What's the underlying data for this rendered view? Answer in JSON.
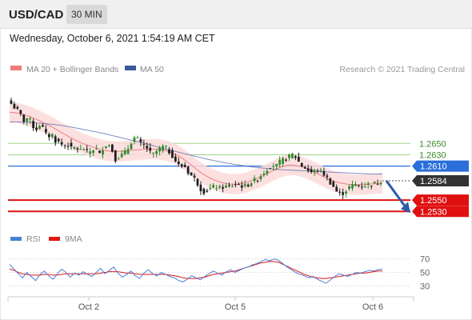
{
  "header": {
    "symbol": "USD/CAD",
    "timeframe": "30 MIN",
    "datetime": "Wednesday, October 6, 2021 1:54:19 AM CET"
  },
  "legend": {
    "ma20_label": "MA 20 + Bollinger Bands",
    "ma50_label": "MA 50",
    "credit": "Research © 2021 Trading Central",
    "rsi_label": "RSI",
    "rsi_ma_label": "9MA"
  },
  "colors": {
    "bull": "#2e8b2e",
    "bear": "#1e1e1e",
    "ma20": "#f07c7c",
    "band_fill": "#fcdada",
    "ma50": "#4a5fa8",
    "support": "#e01010",
    "resistance_green": "#9fd48a",
    "pivot": "#2a6fdb",
    "current": "#333333",
    "rsi": "#4a7fd8",
    "rsi_ma": "#e01818"
  },
  "chart_data": [
    {
      "type": "candlestick",
      "title": "USD/CAD 30 MIN",
      "ylim": [
        1.2505,
        1.2745
      ],
      "x_ticks": [
        "Oct 2",
        "Oct 5",
        "Oct 6"
      ],
      "levels": [
        {
          "value": 1.265,
          "label": "1.2650",
          "role": "resistance",
          "color": "#9fd48a"
        },
        {
          "value": 1.263,
          "label": "1.2630",
          "role": "resistance",
          "color": "#9fd48a"
        },
        {
          "value": 1.261,
          "label": "1.2610",
          "role": "pivot",
          "color": "#2a6fdb"
        },
        {
          "value": 1.2584,
          "label": "1.2584",
          "role": "last",
          "color": "#333333"
        },
        {
          "value": 1.255,
          "label": "1.2550",
          "role": "support",
          "color": "#e01010"
        },
        {
          "value": 1.253,
          "label": "1.2530",
          "role": "support",
          "color": "#e01010"
        }
      ],
      "close_path": [
        1.272,
        1.2712,
        1.2705,
        1.269,
        1.2695,
        1.2688,
        1.2672,
        1.2684,
        1.2676,
        1.266,
        1.2668,
        1.2655,
        1.2652,
        1.2645,
        1.265,
        1.264,
        1.2644,
        1.2637,
        1.2641,
        1.2633,
        1.2638,
        1.2642,
        1.263,
        1.2645,
        1.265,
        1.264,
        1.2622,
        1.2628,
        1.2631,
        1.264,
        1.2655,
        1.2662,
        1.265,
        1.2646,
        1.2641,
        1.2628,
        1.2635,
        1.264,
        1.2645,
        1.2638,
        1.263,
        1.2618,
        1.2608,
        1.2612,
        1.26,
        1.2592,
        1.2585,
        1.2571,
        1.2565,
        1.2568,
        1.2572,
        1.2574,
        1.257,
        1.2575,
        1.2572,
        1.2576,
        1.2578,
        1.2576,
        1.2574,
        1.2578,
        1.2583,
        1.2586,
        1.2593,
        1.26,
        1.2608,
        1.2612,
        1.261,
        1.2618,
        1.2622,
        1.2626,
        1.263,
        1.2625,
        1.2612,
        1.2608,
        1.2602,
        1.2598,
        1.2605,
        1.26,
        1.2595,
        1.2585,
        1.2576,
        1.2565,
        1.256,
        1.2565,
        1.2572,
        1.2576,
        1.2578,
        1.2575,
        1.2576,
        1.2578,
        1.2579,
        1.258,
        1.2584
      ],
      "forecast": {
        "from": 1.2584,
        "to": 1.253,
        "direction": "down"
      },
      "ma20_path": [
        1.2705,
        1.2704,
        1.2701,
        1.2697,
        1.2692,
        1.2686,
        1.268,
        1.2673,
        1.2666,
        1.2659,
        1.2653,
        1.2648,
        1.2644,
        1.264,
        1.2637,
        1.2636,
        1.2636,
        1.2637,
        1.2638,
        1.2639,
        1.264,
        1.264,
        1.2639,
        1.2636,
        1.2631,
        1.2624,
        1.2615,
        1.2605,
        1.2596,
        1.2589,
        1.2584,
        1.258,
        1.2578,
        1.2578,
        1.258,
        1.2584,
        1.2589,
        1.2595,
        1.2601,
        1.2607,
        1.2611,
        1.2612,
        1.261,
        1.2606,
        1.26,
        1.2594,
        1.2588,
        1.2583,
        1.258,
        1.2578,
        1.2577,
        1.2577,
        1.2578,
        1.2579,
        1.258
      ],
      "ma50_path": [
        1.2688,
        1.2688,
        1.2687,
        1.2685,
        1.2683,
        1.268,
        1.2676,
        1.2672,
        1.2668,
        1.2663,
        1.2658,
        1.2653,
        1.2648,
        1.2642,
        1.2637,
        1.2632,
        1.2627,
        1.2622,
        1.2618,
        1.2614,
        1.2611,
        1.2608,
        1.2606,
        1.2604,
        1.2603,
        1.2602,
        1.2601,
        1.26,
        1.2599,
        1.2598,
        1.2597,
        1.2596,
        1.2596
      ],
      "band_width": 0.0018
    },
    {
      "type": "line",
      "title": "RSI",
      "ylim": [
        20,
        80
      ],
      "y_ticks": [
        70,
        50,
        30
      ],
      "series": [
        {
          "name": "RSI",
          "color": "#4a7fd8",
          "values": [
            62,
            55,
            48,
            42,
            50,
            44,
            38,
            47,
            52,
            45,
            40,
            48,
            55,
            50,
            43,
            49,
            46,
            51,
            47,
            44,
            50,
            56,
            48,
            53,
            58,
            49,
            43,
            47,
            52,
            45,
            41,
            49,
            54,
            48,
            45,
            50,
            47,
            44,
            42,
            38,
            36,
            40,
            45,
            42,
            39,
            44,
            48,
            52,
            49,
            46,
            51,
            54,
            50,
            53,
            56,
            58,
            61,
            63,
            66,
            69,
            67,
            70,
            68,
            63,
            58,
            54,
            50,
            47,
            45,
            42,
            44,
            40,
            37,
            34,
            39,
            44,
            48,
            46,
            44,
            47,
            50,
            49,
            51,
            53,
            52,
            54,
            55
          ]
        },
        {
          "name": "9MA",
          "color": "#e01818",
          "values": [
            55,
            53,
            50,
            48,
            47,
            46,
            46,
            46,
            47,
            47,
            46,
            46,
            47,
            48,
            48,
            48,
            48,
            48,
            48,
            48,
            48,
            49,
            50,
            51,
            51,
            51,
            50,
            49,
            49,
            48,
            47,
            47,
            47,
            47,
            47,
            47,
            47,
            46,
            45,
            44,
            42,
            41,
            41,
            41,
            42,
            43,
            45,
            47,
            48,
            49,
            50,
            51,
            52,
            54,
            56,
            58,
            60,
            62,
            64,
            65,
            66,
            66,
            65,
            62,
            59,
            56,
            53,
            50,
            47,
            45,
            43,
            42,
            41,
            41,
            42,
            43,
            44,
            45,
            46,
            47,
            48,
            49,
            49,
            50,
            51,
            52,
            52
          ]
        }
      ]
    }
  ]
}
